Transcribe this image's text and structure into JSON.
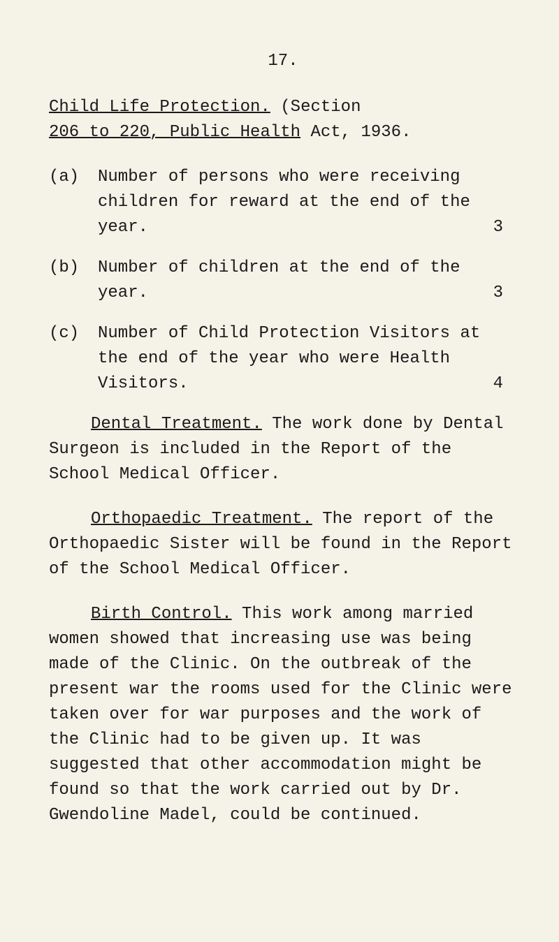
{
  "page_number": "17.",
  "header": {
    "title_underlined": "Child Life Protection.",
    "title_rest_line1": " (Section",
    "title_line2_underlined": "206 to 220, Public Health",
    "title_line2_rest": " Act, 1936."
  },
  "items": [
    {
      "label": "(a)",
      "text": "Number of persons who were receiving children for reward at the end of the year.",
      "value": "3"
    },
    {
      "label": "(b)",
      "text": "Number of children at the end of the year.",
      "value": "3"
    },
    {
      "label": "(c)",
      "text": "Number of Child Protection Visitors at the end of the year who were Health Visitors.",
      "value": "4"
    }
  ],
  "paragraphs": {
    "dental_title": "Dental Treatment.",
    "dental_text": " The work done by Dental Surgeon is included in the Report of the School Medical Officer.",
    "ortho_title": "Orthopaedic Treatment.",
    "ortho_text": " The report of the Orthopaedic Sister will be found in the Report of the School Medical Officer.",
    "birth_title": "Birth Control.",
    "birth_text": " This work among married women showed that increasing use was being made of the Clinic. On the outbreak of the present war the rooms used for the Clinic were taken over for war purposes and the work of the Clinic had to be given up. It was suggested that other accommodation might be found so that the work carried out by Dr. Gwendoline Madel, could be continued.",
    "married_underlined": "married women showed"
  }
}
